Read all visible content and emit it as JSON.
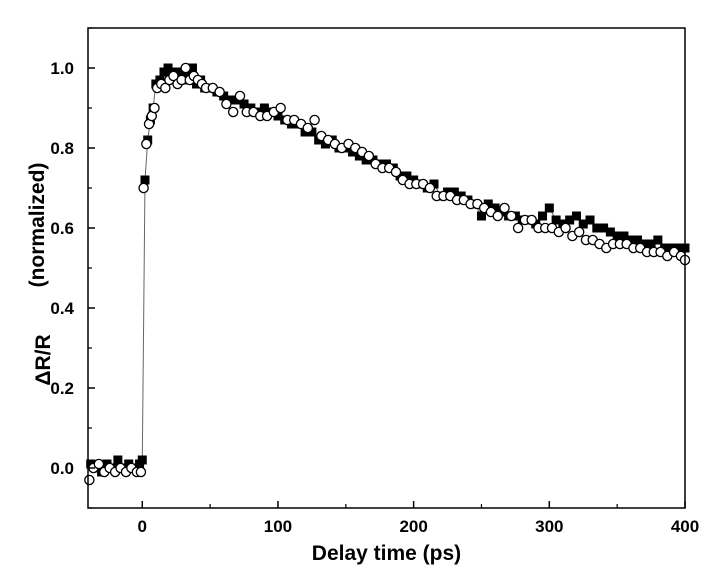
{
  "chart_data": {
    "type": "scatter",
    "xlabel": "Delay time (ps)",
    "ylabel": "ΔR/R (normalized)",
    "ylabel_main": "ΔR/R",
    "ylabel_paren": "(normalized)",
    "xlim": [
      -40,
      400
    ],
    "ylim": [
      -0.1,
      1.1
    ],
    "x_ticks": [
      0,
      100,
      200,
      300,
      400
    ],
    "y_ticks": [
      0.0,
      0.2,
      0.4,
      0.6,
      0.8,
      1.0
    ],
    "x_tick_labels": [
      "0",
      "100",
      "200",
      "300",
      "400"
    ],
    "y_tick_labels": [
      "0.0",
      "0.2",
      "0.4",
      "0.6",
      "0.8",
      "1.0"
    ],
    "grid": false,
    "legend": "none",
    "series": [
      {
        "marker": "filled-square",
        "color": "#000000",
        "line": true,
        "x": [
          -38,
          -34,
          -30,
          -26,
          -22,
          -18,
          -14,
          -10,
          -6,
          -2,
          0,
          2,
          4,
          6,
          8,
          10,
          13,
          16,
          19,
          22,
          25,
          28,
          31,
          34,
          37,
          40,
          43,
          46,
          50,
          55,
          60,
          65,
          70,
          75,
          80,
          85,
          90,
          95,
          100,
          105,
          110,
          115,
          120,
          125,
          130,
          135,
          140,
          145,
          150,
          155,
          160,
          165,
          170,
          175,
          180,
          185,
          190,
          195,
          200,
          205,
          210,
          215,
          220,
          225,
          230,
          235,
          240,
          245,
          250,
          255,
          260,
          265,
          270,
          275,
          280,
          285,
          290,
          295,
          300,
          305,
          310,
          315,
          320,
          325,
          330,
          335,
          340,
          345,
          350,
          355,
          360,
          365,
          370,
          375,
          380,
          385,
          390,
          395,
          400
        ],
        "y": [
          0.01,
          0.0,
          -0.01,
          0.01,
          0.0,
          0.02,
          0.0,
          0.01,
          0.0,
          0.01,
          0.02,
          0.72,
          0.82,
          0.87,
          0.9,
          0.96,
          0.97,
          0.99,
          1.0,
          0.99,
          0.98,
          0.99,
          0.97,
          0.99,
          1.0,
          0.96,
          0.97,
          0.95,
          0.95,
          0.94,
          0.93,
          0.92,
          0.92,
          0.91,
          0.9,
          0.89,
          0.9,
          0.89,
          0.88,
          0.87,
          0.86,
          0.86,
          0.84,
          0.84,
          0.82,
          0.81,
          0.82,
          0.8,
          0.8,
          0.79,
          0.78,
          0.77,
          0.77,
          0.76,
          0.76,
          0.75,
          0.73,
          0.73,
          0.72,
          0.71,
          0.7,
          0.71,
          0.68,
          0.69,
          0.69,
          0.68,
          0.67,
          0.66,
          0.63,
          0.66,
          0.65,
          0.64,
          0.63,
          0.63,
          0.62,
          0.62,
          0.61,
          0.63,
          0.65,
          0.62,
          0.61,
          0.62,
          0.63,
          0.61,
          0.62,
          0.6,
          0.6,
          0.59,
          0.58,
          0.58,
          0.57,
          0.57,
          0.56,
          0.56,
          0.57,
          0.55,
          0.55,
          0.55,
          0.55
        ]
      },
      {
        "marker": "open-circle",
        "color": "#000000",
        "line": false,
        "x": [
          -39,
          -36,
          -32,
          -28,
          -24,
          -20,
          -16,
          -12,
          -8,
          -4,
          -1,
          1,
          3,
          5,
          7,
          9,
          11,
          14,
          17,
          20,
          23,
          26,
          29,
          32,
          35,
          38,
          41,
          44,
          47,
          52,
          57,
          62,
          67,
          72,
          77,
          82,
          87,
          92,
          97,
          102,
          107,
          112,
          117,
          122,
          127,
          132,
          137,
          142,
          147,
          152,
          157,
          162,
          167,
          172,
          177,
          182,
          187,
          192,
          197,
          202,
          207,
          212,
          217,
          222,
          227,
          232,
          237,
          242,
          247,
          252,
          257,
          262,
          267,
          272,
          277,
          282,
          287,
          292,
          297,
          302,
          307,
          312,
          317,
          322,
          327,
          332,
          337,
          342,
          347,
          352,
          357,
          362,
          367,
          372,
          377,
          382,
          387,
          392,
          397,
          400
        ],
        "y": [
          -0.03,
          0.0,
          0.01,
          -0.01,
          0.0,
          -0.01,
          0.0,
          -0.01,
          0.0,
          -0.01,
          -0.01,
          0.7,
          0.81,
          0.86,
          0.88,
          0.9,
          0.95,
          0.96,
          0.95,
          0.97,
          0.98,
          0.96,
          0.97,
          1.0,
          0.97,
          0.98,
          0.97,
          0.96,
          0.95,
          0.95,
          0.94,
          0.91,
          0.89,
          0.93,
          0.89,
          0.89,
          0.88,
          0.88,
          0.89,
          0.9,
          0.87,
          0.87,
          0.86,
          0.85,
          0.87,
          0.83,
          0.82,
          0.81,
          0.8,
          0.81,
          0.8,
          0.79,
          0.78,
          0.76,
          0.75,
          0.75,
          0.74,
          0.72,
          0.71,
          0.71,
          0.71,
          0.7,
          0.68,
          0.68,
          0.68,
          0.67,
          0.67,
          0.66,
          0.66,
          0.65,
          0.64,
          0.63,
          0.65,
          0.63,
          0.6,
          0.62,
          0.62,
          0.6,
          0.6,
          0.6,
          0.59,
          0.6,
          0.58,
          0.59,
          0.57,
          0.57,
          0.56,
          0.55,
          0.56,
          0.56,
          0.56,
          0.55,
          0.55,
          0.54,
          0.54,
          0.54,
          0.53,
          0.54,
          0.53,
          0.52
        ]
      }
    ]
  }
}
